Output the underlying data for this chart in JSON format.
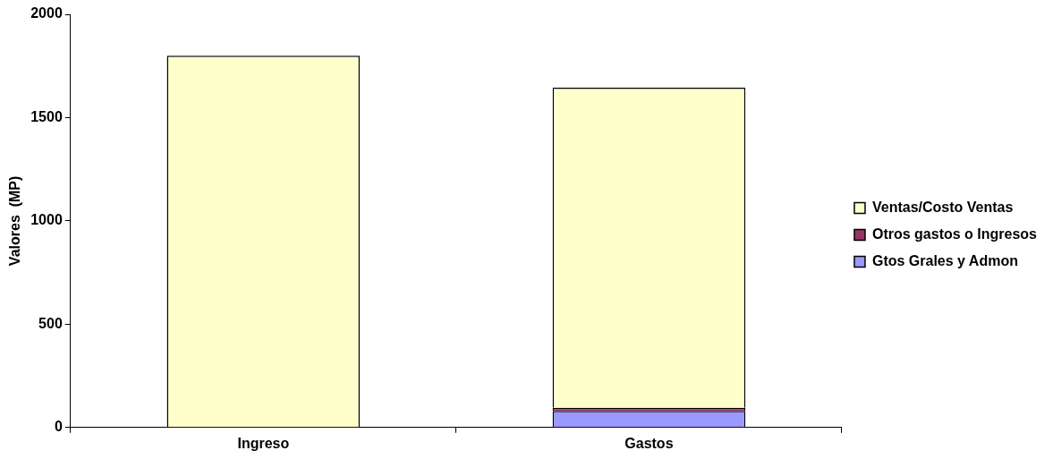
{
  "chart_data": {
    "type": "bar",
    "ylabel": "Valores  (MP)",
    "categories": [
      "Ingreso",
      "Gastos"
    ],
    "stacked": true,
    "series": [
      {
        "name": "Gtos Grales y Admon",
        "color": "#9999ff",
        "values": [
          null,
          80
        ]
      },
      {
        "name": "Otros gastos o Ingresos",
        "color": "#993366",
        "values": [
          null,
          15
        ]
      },
      {
        "name": "Ventas/Costo Ventas",
        "color": "#ffffcc",
        "values": [
          1800,
          1550
        ]
      }
    ],
    "ylim": [
      0,
      2000
    ],
    "yticks": [
      0,
      500,
      1000,
      1500,
      2000
    ],
    "grid": false,
    "legend": "right"
  }
}
